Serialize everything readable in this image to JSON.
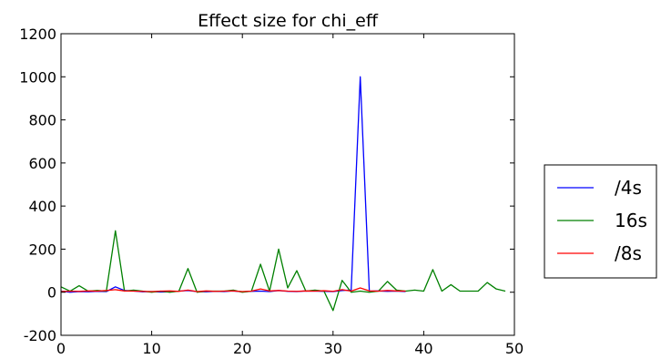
{
  "chart_data": {
    "type": "line",
    "title": "Effect size for chi_eff",
    "xlabel": "",
    "ylabel": "",
    "xlim": [
      0,
      50
    ],
    "ylim": [
      -200,
      1200
    ],
    "xticks": [
      0,
      10,
      20,
      30,
      40,
      50
    ],
    "yticks": [
      -200,
      0,
      200,
      400,
      600,
      800,
      1000,
      1200
    ],
    "grid": false,
    "legend_position": "outside-right",
    "series": [
      {
        "name": "/4s",
        "color": "#0000ff",
        "x": [
          0,
          1,
          2,
          3,
          4,
          5,
          6,
          7,
          8,
          9,
          10,
          11,
          12,
          13,
          14,
          15,
          16,
          17,
          18,
          19,
          20,
          21,
          22,
          23,
          24,
          25,
          26,
          27,
          28,
          29,
          30,
          31,
          32,
          33,
          34,
          35,
          36,
          37,
          38
        ],
        "values": [
          5,
          0,
          3,
          2,
          4,
          3,
          25,
          8,
          6,
          2,
          3,
          1,
          2,
          5,
          8,
          3,
          2,
          4,
          3,
          6,
          2,
          4,
          5,
          3,
          8,
          4,
          3,
          6,
          5,
          4,
          3,
          8,
          10,
          1000,
          5,
          6,
          4,
          5,
          3
        ]
      },
      {
        "name": "16s",
        "color": "#008000",
        "x": [
          0,
          1,
          2,
          3,
          4,
          5,
          6,
          7,
          8,
          9,
          10,
          11,
          12,
          13,
          14,
          15,
          16,
          17,
          18,
          19,
          20,
          21,
          22,
          23,
          24,
          25,
          26,
          27,
          28,
          29,
          30,
          31,
          32,
          33,
          34,
          35,
          36,
          37,
          38,
          39,
          40,
          41,
          42,
          43,
          44,
          45,
          46,
          47,
          48,
          49
        ],
        "values": [
          25,
          5,
          30,
          5,
          8,
          5,
          285,
          5,
          10,
          5,
          0,
          5,
          0,
          5,
          110,
          0,
          5,
          5,
          5,
          10,
          0,
          5,
          130,
          5,
          200,
          20,
          100,
          5,
          10,
          5,
          -85,
          55,
          0,
          5,
          0,
          5,
          50,
          10,
          5,
          10,
          5,
          105,
          5,
          35,
          5,
          5,
          5,
          45,
          15,
          5
        ]
      },
      {
        "name": "/8s",
        "color": "#ff0000",
        "x": [
          0,
          1,
          2,
          3,
          4,
          5,
          6,
          7,
          8,
          9,
          10,
          11,
          12,
          13,
          14,
          15,
          16,
          17,
          18,
          19,
          20,
          21,
          22,
          23,
          24,
          25,
          26,
          27,
          28,
          29,
          30,
          31,
          32,
          33,
          34,
          35,
          36,
          37,
          38
        ],
        "values": [
          3,
          5,
          4,
          6,
          5,
          8,
          12,
          6,
          5,
          4,
          3,
          5,
          6,
          4,
          10,
          3,
          6,
          4,
          5,
          6,
          3,
          5,
          15,
          6,
          8,
          5,
          4,
          6,
          5,
          7,
          4,
          12,
          5,
          20,
          6,
          5,
          8,
          6,
          5
        ]
      }
    ]
  }
}
